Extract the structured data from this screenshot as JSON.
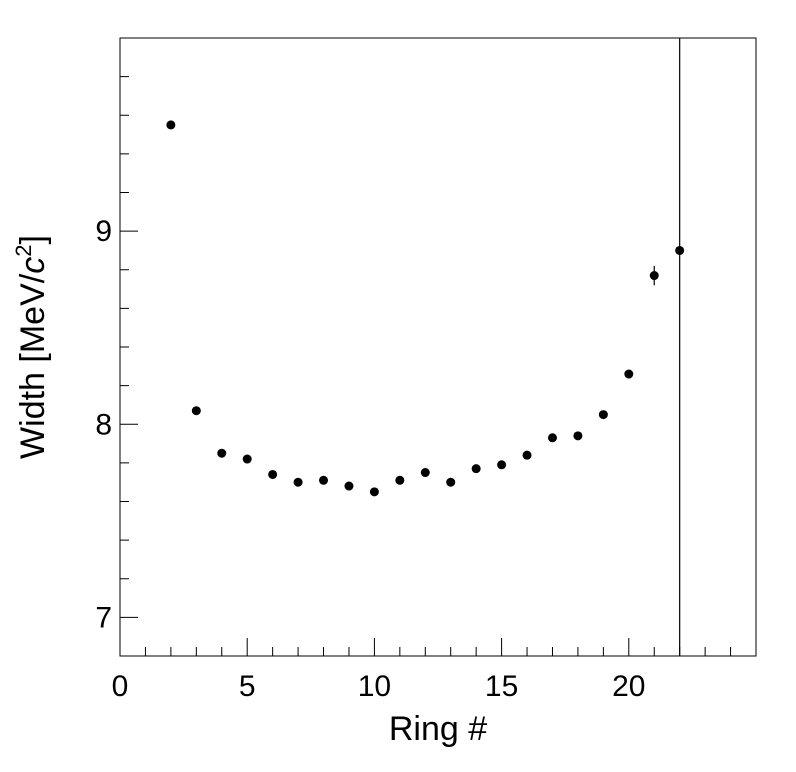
{
  "chart_data": {
    "type": "scatter",
    "xlabel": "Ring #",
    "ylabel": {
      "prefix": "Width [MeV/",
      "var": "c",
      "sup": "2",
      "suffix": "]"
    },
    "xlim": [
      0,
      25
    ],
    "ylim": [
      6.8,
      10.0
    ],
    "x_ticks": [
      0,
      5,
      10,
      15,
      20
    ],
    "y_ticks": [
      7,
      8,
      9
    ],
    "x_minor_step": 1,
    "y_minor_step": 0.2,
    "grid": false,
    "vertical_line_x": 22,
    "series": [
      {
        "x": [
          2,
          3,
          4,
          5,
          6,
          7,
          8,
          9,
          10,
          11,
          12,
          13,
          14,
          15,
          16,
          17,
          18,
          19,
          20,
          21,
          22
        ],
        "y": [
          9.55,
          8.07,
          7.85,
          7.82,
          7.74,
          7.7,
          7.71,
          7.68,
          7.65,
          7.71,
          7.75,
          7.7,
          7.77,
          7.79,
          7.84,
          7.93,
          7.94,
          8.05,
          8.26,
          8.77,
          8.9
        ],
        "yerr": [
          0.01,
          0.01,
          0.01,
          0.01,
          0.01,
          0.01,
          0.01,
          0.01,
          0.01,
          0.01,
          0.01,
          0.01,
          0.01,
          0.01,
          0.01,
          0.01,
          0.01,
          0.01,
          0.015,
          0.05,
          0.01
        ]
      }
    ]
  }
}
